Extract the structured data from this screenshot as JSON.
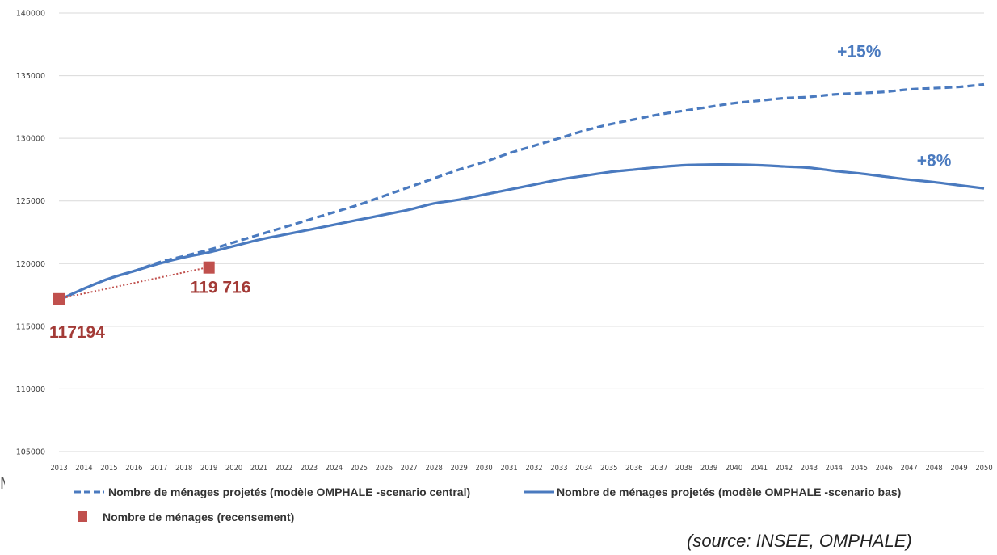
{
  "chart_data": {
    "type": "line",
    "title": "",
    "xlabel": "",
    "ylabel": "",
    "ylim": [
      105000,
      140000
    ],
    "y_ticks": [
      105000,
      110000,
      115000,
      120000,
      125000,
      130000,
      135000,
      140000
    ],
    "x": [
      2013,
      2014,
      2015,
      2016,
      2017,
      2018,
      2019,
      2020,
      2021,
      2022,
      2023,
      2024,
      2025,
      2026,
      2027,
      2028,
      2029,
      2030,
      2031,
      2032,
      2033,
      2034,
      2035,
      2036,
      2037,
      2038,
      2039,
      2040,
      2041,
      2042,
      2043,
      2044,
      2045,
      2046,
      2047,
      2048,
      2049,
      2050
    ],
    "grid": true,
    "legend_position": "bottom",
    "series": [
      {
        "name": "Nombre de ménages projetés (modèle OMPHALE -scenario central)",
        "style": "dashed",
        "color": "#4a7abf",
        "values": [
          117100,
          118000,
          118800,
          119400,
          120100,
          120600,
          121100,
          121700,
          122300,
          122900,
          123500,
          124100,
          124700,
          125400,
          126100,
          126800,
          127500,
          128100,
          128800,
          129400,
          130000,
          130600,
          131100,
          131500,
          131900,
          132200,
          132500,
          132800,
          133000,
          133200,
          133300,
          133500,
          133600,
          133700,
          133900,
          134000,
          134100,
          134300
        ]
      },
      {
        "name": "Nombre de ménages projetés (modèle OMPHALE -scenario bas)",
        "style": "solid",
        "color": "#4a7abf",
        "values": [
          117100,
          118000,
          118800,
          119400,
          120000,
          120500,
          120900,
          121400,
          121900,
          122300,
          122700,
          123100,
          123500,
          123900,
          124300,
          124800,
          125100,
          125500,
          125900,
          126300,
          126700,
          127000,
          127300,
          127500,
          127700,
          127850,
          127900,
          127900,
          127850,
          127750,
          127650,
          127400,
          127200,
          126950,
          126700,
          126500,
          126250,
          126000
        ]
      },
      {
        "name": "Nombre de ménages (recensement)",
        "style": "markers",
        "color": "#a33b37",
        "points": [
          {
            "x": 2013,
            "y": 117194,
            "label": "117194"
          },
          {
            "x": 2019,
            "y": 119716,
            "label": "119 716"
          }
        ]
      }
    ],
    "annotations": [
      {
        "text": "+15%",
        "x": 2045,
        "y": 136500,
        "color": "#4a7abf"
      },
      {
        "text": "+8%",
        "x": 2048,
        "y": 127800,
        "color": "#4a7abf"
      }
    ]
  },
  "source": "(source: INSEE, OMPHALE)",
  "stray_glyph": "M"
}
